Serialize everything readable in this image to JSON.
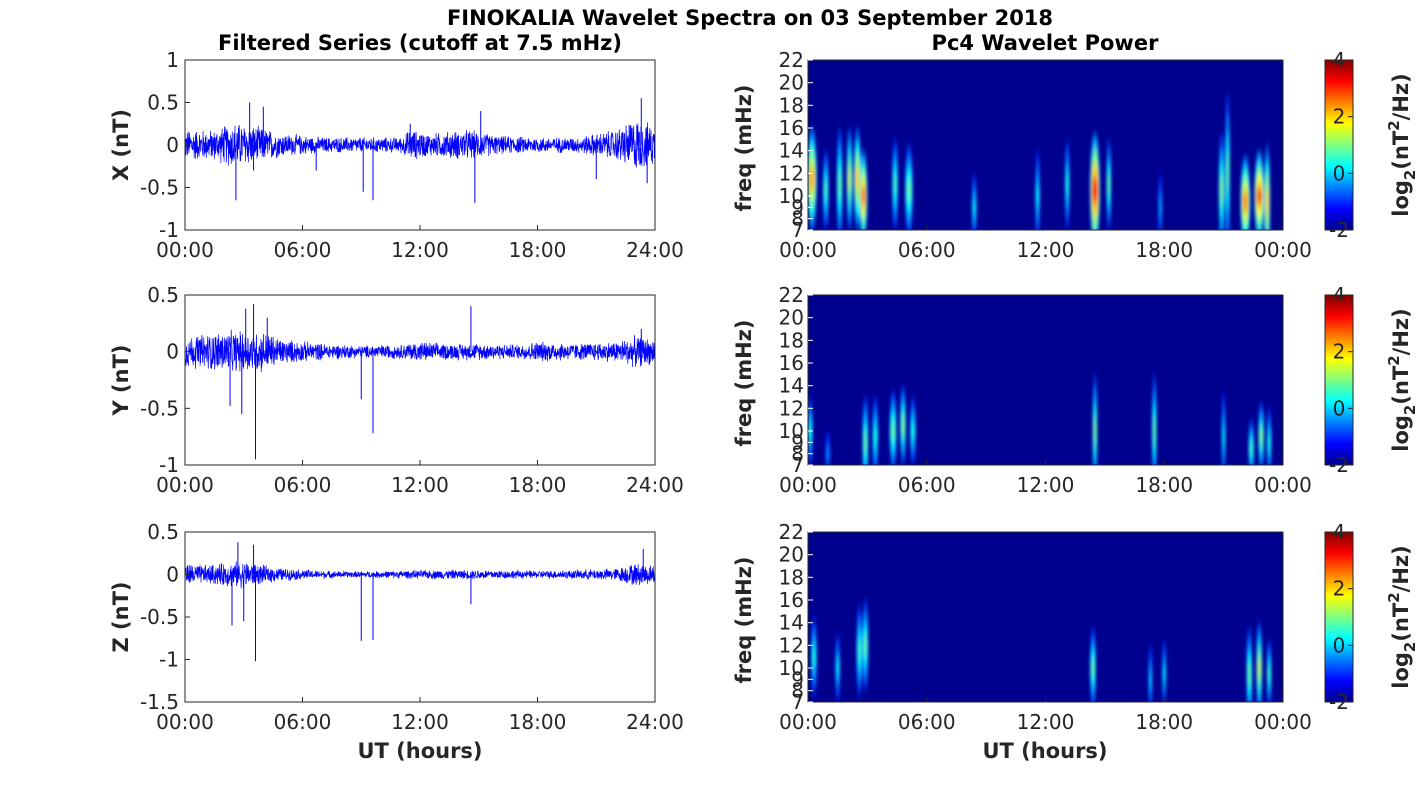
{
  "figure": {
    "title": "FINOKALIA Wavelet Spectra on 03 September 2018",
    "left_title": "Filtered Series (cutoff at 7.5 mHz)",
    "right_title": "Pc4 Wavelet Power",
    "xlabel": "UT (hours)"
  },
  "colors": {
    "series": "#0000ff",
    "background": "#00008f",
    "axis": "#262626"
  },
  "chart_data": [
    {
      "type": "line",
      "name": "x-series",
      "ylabel": "X (nT)",
      "xlim": [
        0,
        24
      ],
      "ylim": [
        -1,
        1
      ],
      "xticks": [
        "00:00",
        "06:00",
        "12:00",
        "18:00",
        "24:00"
      ],
      "yticks": [
        "1",
        "0.5",
        "0",
        "-0.5",
        "-1"
      ],
      "amplitude_profile": [
        [
          0,
          0.2
        ],
        [
          1.5,
          0.2
        ],
        [
          2.5,
          0.3
        ],
        [
          3.5,
          0.25
        ],
        [
          5,
          0.15
        ],
        [
          7,
          0.1
        ],
        [
          9,
          0.1
        ],
        [
          11,
          0.1
        ],
        [
          11.5,
          0.2
        ],
        [
          12.5,
          0.15
        ],
        [
          14.5,
          0.2
        ],
        [
          16,
          0.12
        ],
        [
          18,
          0.1
        ],
        [
          20,
          0.1
        ],
        [
          21,
          0.15
        ],
        [
          22,
          0.2
        ],
        [
          23,
          0.35
        ],
        [
          24,
          0.25
        ]
      ],
      "spikes": [
        [
          2.6,
          -0.65
        ],
        [
          3.3,
          0.5
        ],
        [
          3.5,
          -0.3
        ],
        [
          4.0,
          0.45
        ],
        [
          6.7,
          -0.3
        ],
        [
          9.1,
          -0.55
        ],
        [
          9.6,
          -0.65
        ],
        [
          11.5,
          0.25
        ],
        [
          14.8,
          -0.68
        ],
        [
          15.1,
          0.4
        ],
        [
          21.0,
          -0.4
        ],
        [
          23.3,
          0.55
        ],
        [
          23.6,
          -0.45
        ]
      ]
    },
    {
      "type": "line",
      "name": "y-series",
      "ylabel": "Y (nT)",
      "xlim": [
        0,
        24
      ],
      "ylim": [
        -1,
        0.5
      ],
      "xticks": [
        "00:00",
        "06:00",
        "12:00",
        "18:00",
        "24:00"
      ],
      "yticks": [
        "0.5",
        "0",
        "-0.5",
        "-1"
      ],
      "amplitude_profile": [
        [
          0,
          0.15
        ],
        [
          2,
          0.2
        ],
        [
          3,
          0.2
        ],
        [
          4,
          0.2
        ],
        [
          5,
          0.12
        ],
        [
          7,
          0.08
        ],
        [
          9,
          0.06
        ],
        [
          11,
          0.07
        ],
        [
          12,
          0.1
        ],
        [
          13,
          0.08
        ],
        [
          15,
          0.08
        ],
        [
          17,
          0.07
        ],
        [
          18,
          0.1
        ],
        [
          20,
          0.08
        ],
        [
          22,
          0.1
        ],
        [
          23,
          0.15
        ],
        [
          24,
          0.12
        ]
      ],
      "spikes": [
        [
          2.3,
          -0.48
        ],
        [
          2.9,
          -0.55
        ],
        [
          3.1,
          0.38
        ],
        [
          3.5,
          0.42
        ],
        [
          3.6,
          -0.95
        ],
        [
          4.2,
          0.3
        ],
        [
          9.0,
          -0.42
        ],
        [
          9.6,
          -0.72
        ],
        [
          14.6,
          0.4
        ],
        [
          23.3,
          0.2
        ]
      ]
    },
    {
      "type": "line",
      "name": "z-series",
      "ylabel": "Z (nT)",
      "xlim": [
        0,
        24
      ],
      "ylim": [
        -1.5,
        0.5
      ],
      "xticks": [
        "00:00",
        "06:00",
        "12:00",
        "18:00",
        "24:00"
      ],
      "yticks": [
        "0.5",
        "0",
        "-0.5",
        "-1",
        "-1.5"
      ],
      "amplitude_profile": [
        [
          0,
          0.15
        ],
        [
          1,
          0.12
        ],
        [
          2,
          0.15
        ],
        [
          3,
          0.18
        ],
        [
          4,
          0.12
        ],
        [
          5,
          0.08
        ],
        [
          7,
          0.05
        ],
        [
          9,
          0.04
        ],
        [
          11,
          0.05
        ],
        [
          13,
          0.06
        ],
        [
          15,
          0.06
        ],
        [
          18,
          0.05
        ],
        [
          20,
          0.06
        ],
        [
          22,
          0.08
        ],
        [
          23,
          0.15
        ],
        [
          24,
          0.12
        ]
      ],
      "spikes": [
        [
          2.4,
          -0.6
        ],
        [
          2.7,
          0.38
        ],
        [
          3.0,
          -0.55
        ],
        [
          3.5,
          0.35
        ],
        [
          3.6,
          -1.02
        ],
        [
          9.0,
          -0.78
        ],
        [
          9.6,
          -0.77
        ],
        [
          14.6,
          -0.35
        ],
        [
          23.4,
          0.3
        ]
      ]
    },
    {
      "type": "heatmap",
      "name": "x-wavelet",
      "ylabel": "freq (mHz)",
      "xlim": [
        0,
        24
      ],
      "ylim": [
        7,
        22
      ],
      "xticks": [
        "00:00",
        "06:00",
        "12:00",
        "18:00",
        "00:00"
      ],
      "yticks": [
        "22",
        "20",
        "18",
        "16",
        "14",
        "12",
        "10",
        "9",
        "8",
        "7"
      ],
      "colorbar_label": "log2(nT2/Hz)",
      "colorbar_ticks": [
        "4",
        "2",
        "0",
        "-2"
      ],
      "clim": [
        -2,
        4
      ],
      "features": [
        [
          0.2,
          11.5,
          0.25,
          4.5,
          2.2
        ],
        [
          0.9,
          10.5,
          0.15,
          3.5,
          0.6
        ],
        [
          1.6,
          11,
          0.15,
          5,
          0.8
        ],
        [
          2.1,
          11.5,
          0.15,
          4.5,
          1.4
        ],
        [
          2.5,
          11.5,
          0.18,
          4.5,
          2.0
        ],
        [
          2.8,
          10,
          0.2,
          4,
          2.6
        ],
        [
          4.4,
          11,
          0.15,
          4,
          0.6
        ],
        [
          5.1,
          10.5,
          0.2,
          4,
          0.8
        ],
        [
          8.4,
          9,
          0.12,
          3,
          0.2
        ],
        [
          11.6,
          10,
          0.12,
          4,
          0.2
        ],
        [
          13.1,
          11,
          0.12,
          4,
          0.4
        ],
        [
          14.5,
          10.5,
          0.25,
          5,
          3.2
        ],
        [
          15.2,
          11,
          0.12,
          4,
          0.8
        ],
        [
          17.8,
          9,
          0.1,
          3,
          -0.2
        ],
        [
          20.9,
          10.5,
          0.15,
          5,
          1.0
        ],
        [
          21.2,
          12,
          0.12,
          7,
          0.8
        ],
        [
          22.1,
          9.5,
          0.25,
          4,
          2.4
        ],
        [
          22.8,
          10,
          0.25,
          4,
          2.8
        ],
        [
          23.2,
          9.5,
          0.15,
          5,
          2.0
        ]
      ]
    },
    {
      "type": "heatmap",
      "name": "y-wavelet",
      "ylabel": "freq (mHz)",
      "xlim": [
        0,
        24
      ],
      "ylim": [
        7,
        22
      ],
      "xticks": [
        "00:00",
        "06:00",
        "12:00",
        "18:00",
        "00:00"
      ],
      "yticks": [
        "22",
        "20",
        "18",
        "16",
        "14",
        "12",
        "10",
        "9",
        "8",
        "7"
      ],
      "colorbar_label": "log2(nT2/Hz)",
      "colorbar_ticks": [
        "4",
        "2",
        "0",
        "-2"
      ],
      "clim": [
        -2,
        4
      ],
      "features": [
        [
          0.1,
          10,
          0.15,
          3,
          0.3
        ],
        [
          1.0,
          8,
          0.12,
          2,
          -0.4
        ],
        [
          2.9,
          9,
          0.15,
          4,
          0.8
        ],
        [
          3.4,
          9.5,
          0.15,
          3.5,
          0.4
        ],
        [
          4.3,
          10,
          0.18,
          3.5,
          0.8
        ],
        [
          4.8,
          10.5,
          0.15,
          3.5,
          1.0
        ],
        [
          5.3,
          10,
          0.15,
          3,
          0.4
        ],
        [
          14.5,
          10,
          0.12,
          5,
          1.0
        ],
        [
          17.5,
          10,
          0.12,
          5,
          0.8
        ],
        [
          21.0,
          9.5,
          0.1,
          4,
          0.2
        ],
        [
          22.4,
          8.5,
          0.15,
          2.5,
          0.6
        ],
        [
          22.9,
          9.5,
          0.15,
          3,
          1.0
        ],
        [
          23.3,
          9,
          0.12,
          3,
          0.4
        ]
      ]
    },
    {
      "type": "heatmap",
      "name": "z-wavelet",
      "ylabel": "freq (mHz)",
      "xlim": [
        0,
        24
      ],
      "ylim": [
        7,
        22
      ],
      "xticks": [
        "00:00",
        "06:00",
        "12:00",
        "18:00",
        "00:00"
      ],
      "yticks": [
        "22",
        "20",
        "18",
        "16",
        "14",
        "12",
        "10",
        "9",
        "8",
        "7"
      ],
      "colorbar_label": "log2(nT2/Hz)",
      "colorbar_ticks": [
        "4",
        "2",
        "0",
        "-2"
      ],
      "clim": [
        -2,
        4
      ],
      "features": [
        [
          0.3,
          11,
          0.15,
          3.5,
          0.4
        ],
        [
          1.5,
          10,
          0.12,
          3,
          0.2
        ],
        [
          2.6,
          11.5,
          0.15,
          4,
          0.6
        ],
        [
          2.9,
          12,
          0.15,
          4,
          0.8
        ],
        [
          14.4,
          10,
          0.15,
          3.5,
          0.8
        ],
        [
          17.3,
          9,
          0.1,
          3,
          0
        ],
        [
          18.0,
          9.5,
          0.1,
          3,
          0.2
        ],
        [
          22.3,
          9.5,
          0.15,
          4,
          0.8
        ],
        [
          22.8,
          10,
          0.15,
          4,
          1.4
        ],
        [
          23.3,
          9.5,
          0.12,
          3,
          0.6
        ]
      ]
    }
  ]
}
